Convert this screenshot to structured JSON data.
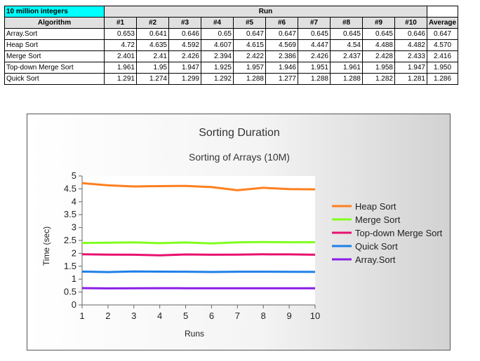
{
  "table": {
    "dataset_label": "10 million integers",
    "run_header": "Run",
    "columns": [
      "Algorithm",
      "#1",
      "#2",
      "#3",
      "#4",
      "#5",
      "#6",
      "#7",
      "#8",
      "#9",
      "#10",
      "Average"
    ],
    "rows": [
      {
        "name": "Array.Sort",
        "runs": [
          "0.653",
          "0.641",
          "0.646",
          "0.65",
          "0.647",
          "0.647",
          "0.645",
          "0.645",
          "0.645",
          "0.646"
        ],
        "average": "0.647"
      },
      {
        "name": "Heap Sort",
        "runs": [
          "4.72",
          "4.635",
          "4.592",
          "4.607",
          "4.615",
          "4.569",
          "4.447",
          "4.54",
          "4.488",
          "4.482"
        ],
        "average": "4.570"
      },
      {
        "name": "Merge Sort",
        "runs": [
          "2.401",
          "2.41",
          "2.426",
          "2.394",
          "2.422",
          "2.386",
          "2.426",
          "2.437",
          "2.428",
          "2.433"
        ],
        "average": "2.416"
      },
      {
        "name": "Top-down Merge Sort",
        "runs": [
          "1.961",
          "1.95",
          "1.947",
          "1.925",
          "1.957",
          "1.946",
          "1.951",
          "1.961",
          "1.958",
          "1.947"
        ],
        "average": "1.950"
      },
      {
        "name": "Quick Sort",
        "runs": [
          "1.291",
          "1.274",
          "1.299",
          "1.292",
          "1.288",
          "1.277",
          "1.288",
          "1.288",
          "1.282",
          "1.281"
        ],
        "average": "1.286"
      }
    ]
  },
  "chart_data": {
    "type": "line",
    "title": "Sorting Duration",
    "subtitle": "Sorting of Arrays (10M)",
    "xlabel": "Runs",
    "ylabel": "Time (sec)",
    "x": [
      1,
      2,
      3,
      4,
      5,
      6,
      7,
      8,
      9,
      10
    ],
    "xlim": [
      1,
      10
    ],
    "ylim": [
      0,
      5
    ],
    "yticks": [
      "0",
      "0.5",
      "1",
      "1.5",
      "2",
      "2.5",
      "3",
      "3.5",
      "4",
      "4.5",
      "5"
    ],
    "xticks": [
      "1",
      "2",
      "3",
      "4",
      "5",
      "6",
      "7",
      "8",
      "9",
      "10"
    ],
    "grid": false,
    "legend_position": "right",
    "series": [
      {
        "name": "Heap Sort",
        "color": "#ff7f1e",
        "values": [
          4.72,
          4.635,
          4.592,
          4.607,
          4.615,
          4.569,
          4.447,
          4.54,
          4.488,
          4.482
        ]
      },
      {
        "name": "Merge Sort",
        "color": "#7fff1e",
        "values": [
          2.401,
          2.41,
          2.426,
          2.394,
          2.422,
          2.386,
          2.426,
          2.437,
          2.428,
          2.433
        ]
      },
      {
        "name": "Top-down Merge Sort",
        "color": "#e8106f",
        "values": [
          1.961,
          1.95,
          1.947,
          1.925,
          1.957,
          1.946,
          1.951,
          1.961,
          1.958,
          1.947
        ]
      },
      {
        "name": "Quick Sort",
        "color": "#1e7fe8",
        "values": [
          1.291,
          1.274,
          1.299,
          1.292,
          1.288,
          1.277,
          1.288,
          1.288,
          1.282,
          1.281
        ]
      },
      {
        "name": "Array.Sort",
        "color": "#8a1ee8",
        "values": [
          0.653,
          0.641,
          0.646,
          0.65,
          0.647,
          0.647,
          0.645,
          0.645,
          0.645,
          0.646
        ]
      }
    ]
  }
}
